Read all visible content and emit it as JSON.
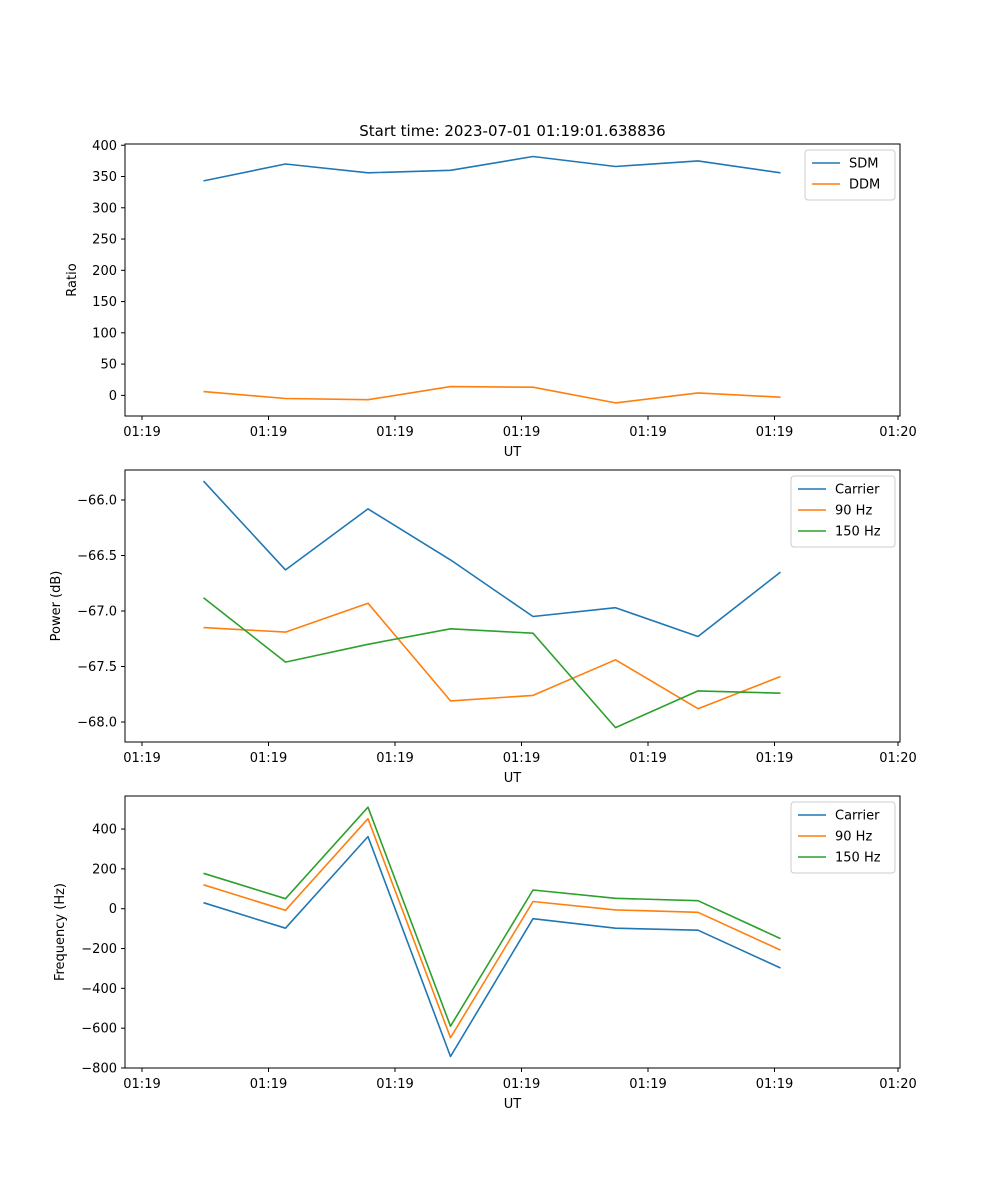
{
  "figure_title": "Start time: 2023-07-01 01:19:01.638836",
  "chart_data": [
    {
      "type": "line",
      "title": "Start time: 2023-07-01 01:19:01.638836",
      "xlabel": "UT",
      "ylabel": "Ratio",
      "x_tick_labels": [
        "01:19",
        "01:19",
        "01:19",
        "01:19",
        "01:19",
        "01:19",
        "01:20"
      ],
      "y_ticks": [
        0,
        50,
        100,
        150,
        200,
        250,
        300,
        350,
        400
      ],
      "y_tick_labels": [
        "0",
        "50",
        "100",
        "150",
        "200",
        "250",
        "300",
        "350",
        "400"
      ],
      "ylim": [
        -33,
        402
      ],
      "x": [
        1,
        2,
        3,
        4,
        5,
        6,
        7,
        8
      ],
      "legend_position": "top-right",
      "series": [
        {
          "name": "SDM",
          "color": "#1f77b4",
          "values": [
            343,
            370,
            356,
            360,
            382,
            366,
            375,
            356
          ]
        },
        {
          "name": "DDM",
          "color": "#ff7f0e",
          "values": [
            6,
            -5,
            -7,
            14,
            13,
            -12,
            4,
            -3
          ]
        }
      ]
    },
    {
      "type": "line",
      "title": "",
      "xlabel": "UT",
      "ylabel": "Power (dB)",
      "x_tick_labels": [
        "01:19",
        "01:19",
        "01:19",
        "01:19",
        "01:19",
        "01:19",
        "01:20"
      ],
      "y_ticks": [
        -66.0,
        -66.5,
        -67.0,
        -67.5,
        -68.0
      ],
      "y_tick_labels": [
        "−66.0",
        "−66.5",
        "−67.0",
        "−67.5",
        "−68.0"
      ],
      "ylim": [
        -68.18,
        -65.73
      ],
      "x": [
        1,
        2,
        3,
        4,
        5,
        6,
        7,
        8
      ],
      "legend_position": "top-right",
      "series": [
        {
          "name": "Carrier",
          "color": "#1f77b4",
          "values": [
            -65.83,
            -66.63,
            -66.08,
            -66.54,
            -67.05,
            -66.97,
            -67.23,
            -66.65
          ]
        },
        {
          "name": "90 Hz",
          "color": "#ff7f0e",
          "values": [
            -67.15,
            -67.19,
            -66.93,
            -67.81,
            -67.76,
            -67.44,
            -67.88,
            -67.59
          ]
        },
        {
          "name": "150 Hz",
          "color": "#2ca02c",
          "values": [
            -66.88,
            -67.46,
            -67.3,
            -67.16,
            -67.2,
            -68.05,
            -67.72,
            -67.74
          ]
        }
      ]
    },
    {
      "type": "line",
      "title": "",
      "xlabel": "UT",
      "ylabel": "Frequency (Hz)",
      "x_tick_labels": [
        "01:19",
        "01:19",
        "01:19",
        "01:19",
        "01:19",
        "01:19",
        "01:20"
      ],
      "y_ticks": [
        400,
        200,
        0,
        -200,
        -400,
        -600,
        -800
      ],
      "y_tick_labels": [
        "400",
        "200",
        "0",
        "−200",
        "−400",
        "−600",
        "−800"
      ],
      "ylim": [
        -800,
        566
      ],
      "x": [
        1,
        2,
        3,
        4,
        5,
        6,
        7,
        8
      ],
      "legend_position": "top-right",
      "series": [
        {
          "name": "Carrier",
          "color": "#1f77b4",
          "values": [
            30,
            -98,
            362,
            -742,
            -50,
            -98,
            -108,
            -298
          ]
        },
        {
          "name": "90 Hz",
          "color": "#ff7f0e",
          "values": [
            120,
            -8,
            452,
            -648,
            36,
            -6,
            -18,
            -208
          ]
        },
        {
          "name": "150 Hz",
          "color": "#2ca02c",
          "values": [
            178,
            50,
            510,
            -590,
            94,
            52,
            40,
            -150
          ]
        }
      ]
    }
  ]
}
